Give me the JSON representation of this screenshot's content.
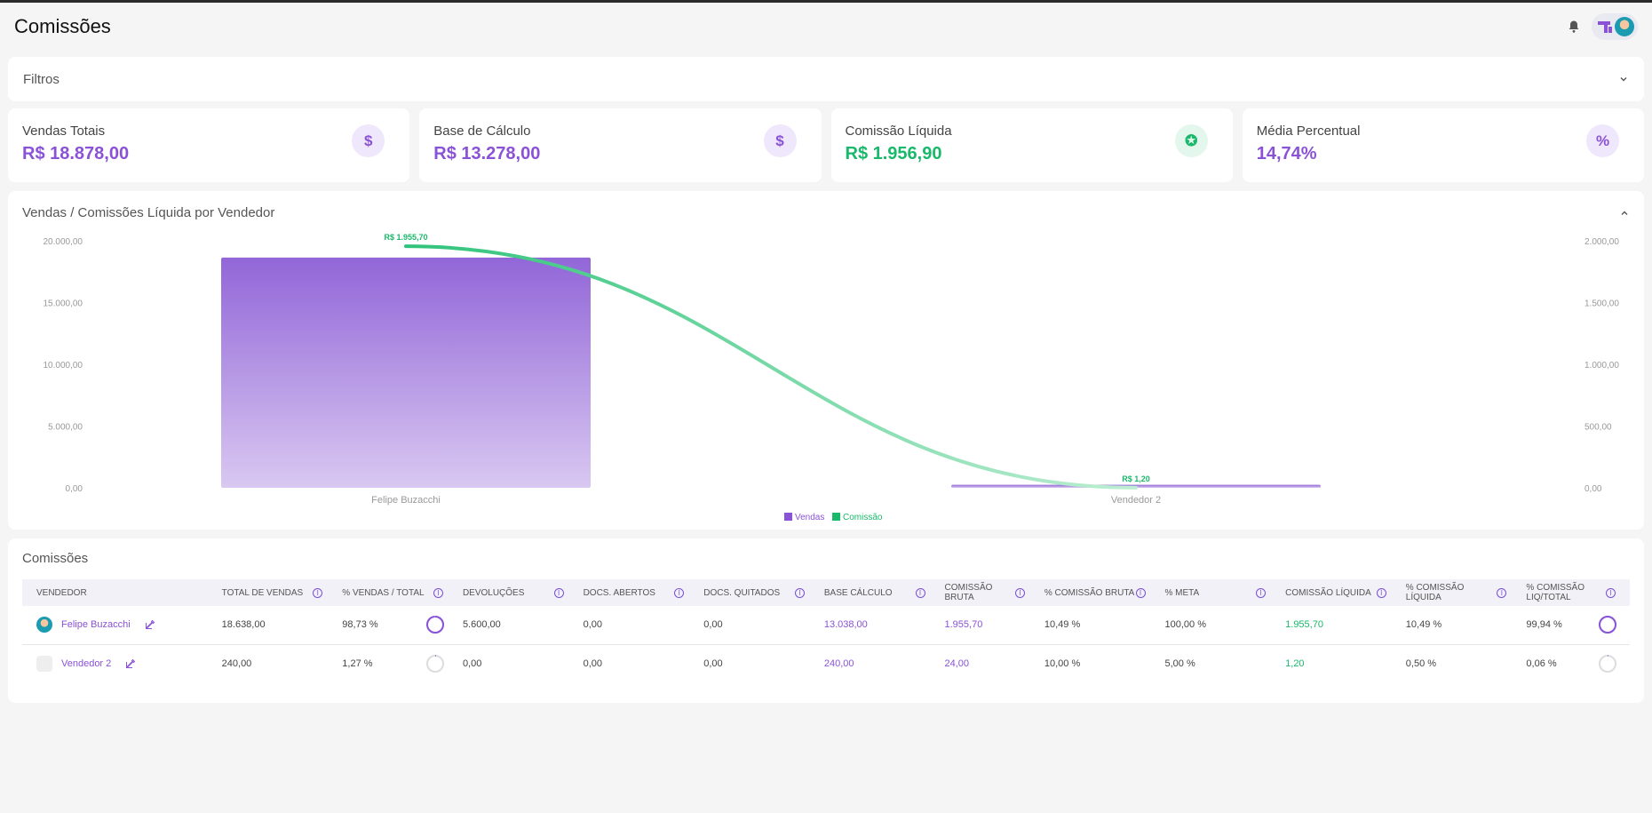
{
  "header": {
    "title": "Comissões"
  },
  "filters": {
    "title": "Filtros"
  },
  "stats": [
    {
      "label": "Vendas Totais",
      "value": "R$ 18.878,00",
      "icon": "dollar-icon",
      "glyph": "$",
      "color": "#8a52d6",
      "bg": "#efe7fb"
    },
    {
      "label": "Base de Cálculo",
      "value": "R$ 13.278,00",
      "icon": "dollar-icon",
      "glyph": "$",
      "color": "#8a52d6",
      "bg": "#efe7fb"
    },
    {
      "label": "Comissão Líquida",
      "value": "R$ 1.956,90",
      "icon": "award-icon",
      "glyph": "✪",
      "color": "#19b86a",
      "bg": "#e3f7ec"
    },
    {
      "label": "Média Percentual",
      "value": "14,74%",
      "icon": "percent-icon",
      "glyph": "%",
      "color": "#8a52d6",
      "bg": "#efe7fb"
    }
  ],
  "chart": {
    "title": "Vendas / Comissões Líquida por Vendedor",
    "legend_vendas": "Vendas",
    "legend_comissao": "Comissão"
  },
  "chart_data": {
    "type": "bar",
    "categories": [
      "Felipe Buzacchi",
      "Vendedor 2"
    ],
    "series": [
      {
        "name": "Vendas",
        "type": "bar",
        "axis": "left",
        "values": [
          18638,
          240
        ],
        "color": "#8a52d6"
      },
      {
        "name": "Comissão",
        "type": "line",
        "axis": "right",
        "values": [
          1955.7,
          1.2
        ],
        "labels": [
          "R$ 1.955,70",
          "R$ 1,20"
        ],
        "color": "#19b86a"
      }
    ],
    "y_left": {
      "ticks": [
        "20.000,00",
        "15.000,00",
        "10.000,00",
        "5.000,00",
        "0,00"
      ],
      "ylim": [
        0,
        20000
      ]
    },
    "y_right": {
      "ticks": [
        "2.000,00",
        "1.500,00",
        "1.000,00",
        "500,00",
        "0,00"
      ],
      "ylim": [
        0,
        2000
      ]
    },
    "legend": "bottom-center"
  },
  "table": {
    "title": "Comissões",
    "headers": [
      "Vendedor",
      "Total de Vendas",
      "% Vendas / Total",
      "Devoluções",
      "Docs. Abertos",
      "Docs. Quitados",
      "Base Cálculo",
      "Comissão Bruta",
      "% Comissão Bruta",
      "% Meta",
      "Comissão Líquida",
      "% Comissão Líquida",
      "% Comissão Liq/Total"
    ],
    "rows": [
      {
        "vendedor": "Felipe Buzacchi",
        "total": "18.638,00",
        "pct_vendas": "98,73 %",
        "pct_vendas_num": 98.73,
        "devolucoes": "5.600,00",
        "abertos": "0,00",
        "quitados": "0,00",
        "base": "13.038,00",
        "bruta": "1.955,70",
        "pct_bruta": "10,49 %",
        "meta": "100,00 %",
        "liquida": "1.955,70",
        "pct_liquida": "10,49 %",
        "pct_liq_total": "99,94 %",
        "pct_liq_total_num": 99.94
      },
      {
        "vendedor": "Vendedor 2",
        "total": "240,00",
        "pct_vendas": "1,27 %",
        "pct_vendas_num": 1.27,
        "devolucoes": "0,00",
        "abertos": "0,00",
        "quitados": "0,00",
        "base": "240,00",
        "bruta": "24,00",
        "pct_bruta": "10,00 %",
        "meta": "5,00 %",
        "liquida": "1,20",
        "pct_liquida": "0,50 %",
        "pct_liq_total": "0,06 %",
        "pct_liq_total_num": 0.06
      }
    ]
  }
}
